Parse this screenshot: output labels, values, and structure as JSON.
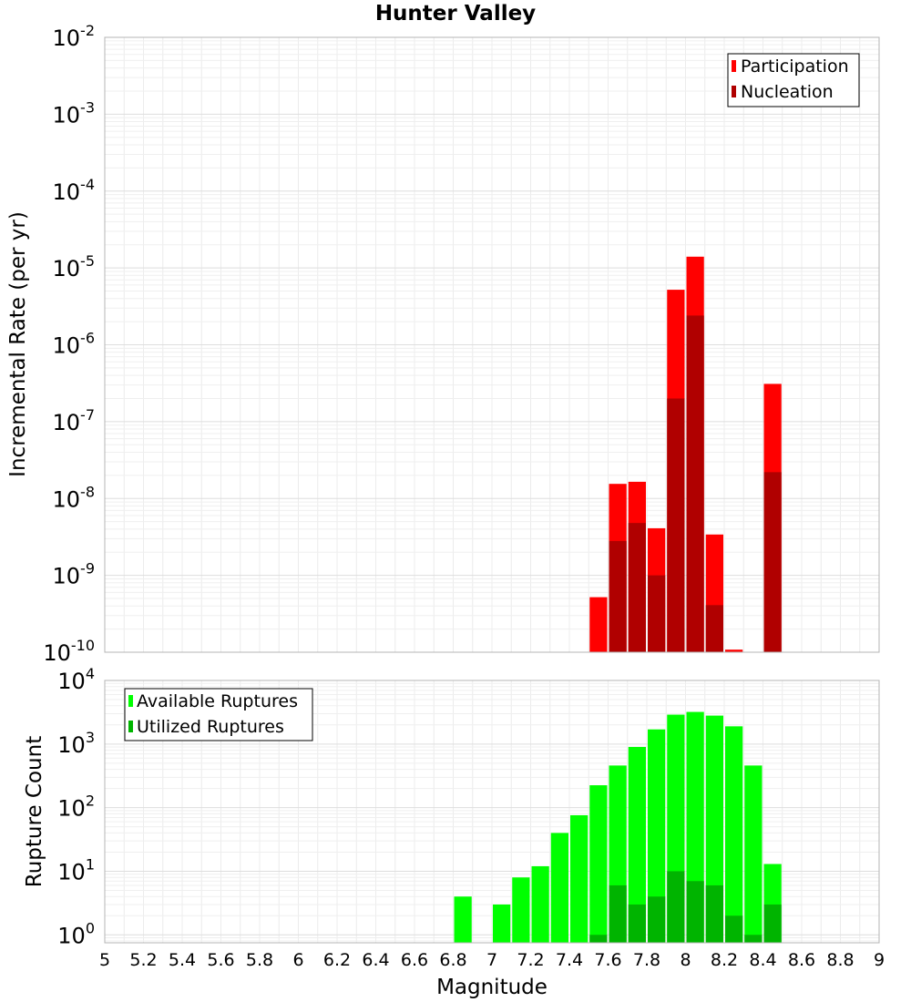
{
  "chart_data": [
    {
      "type": "bar",
      "title": "Hunter Valley",
      "xlabel": "",
      "ylabel": "Incremental Rate (per yr)",
      "xlim": [
        5,
        9
      ],
      "ylim": [
        1e-10,
        0.01
      ],
      "yscale": "log",
      "grid": true,
      "legend_position": "top-right",
      "bin_width": 0.1,
      "y_ticks": [
        {
          "base": "10",
          "exp": "-2"
        },
        {
          "base": "10",
          "exp": "-3"
        },
        {
          "base": "10",
          "exp": "-4"
        },
        {
          "base": "10",
          "exp": "-5"
        },
        {
          "base": "10",
          "exp": "-6"
        },
        {
          "base": "10",
          "exp": "-7"
        },
        {
          "base": "10",
          "exp": "-8"
        },
        {
          "base": "10",
          "exp": "-9"
        },
        {
          "base": "10",
          "exp": "-10"
        }
      ],
      "series": [
        {
          "name": "Participation",
          "color": "#ff0000",
          "x": [
            7.55,
            7.65,
            7.75,
            7.85,
            7.95,
            8.05,
            8.15,
            8.25,
            8.45
          ],
          "values": [
            5.2e-10,
            1.55e-08,
            1.65e-08,
            4.1e-09,
            5.2e-06,
            1.4e-05,
            3.4e-09,
            1.08e-10,
            3.1e-07
          ]
        },
        {
          "name": "Nucleation",
          "color": "#b00000",
          "x": [
            7.65,
            7.75,
            7.85,
            7.95,
            8.05,
            8.15,
            8.45
          ],
          "values": [
            2.8e-09,
            4.8e-09,
            1e-09,
            2e-07,
            2.4e-06,
            4.1e-10,
            2.2e-08
          ]
        }
      ]
    },
    {
      "type": "bar",
      "title": "",
      "xlabel": "Magnitude",
      "ylabel": "Rupture Count",
      "xlim": [
        5,
        9
      ],
      "ylim": [
        0.75,
        10000
      ],
      "yscale": "log",
      "grid": true,
      "legend_position": "top-left",
      "bin_width": 0.1,
      "x_ticks": [
        "5",
        "5.2",
        "5.4",
        "5.6",
        "5.8",
        "6",
        "6.2",
        "6.4",
        "6.6",
        "6.8",
        "7",
        "7.2",
        "7.4",
        "7.6",
        "7.8",
        "8",
        "8.2",
        "8.4",
        "8.6",
        "8.8",
        "9"
      ],
      "y_ticks": [
        {
          "base": "10",
          "exp": "4"
        },
        {
          "base": "10",
          "exp": "3"
        },
        {
          "base": "10",
          "exp": "2"
        },
        {
          "base": "10",
          "exp": "1"
        },
        {
          "base": "10",
          "exp": "0"
        }
      ],
      "series": [
        {
          "name": "Available Ruptures",
          "color": "#00ff00",
          "x": [
            6.85,
            7.05,
            7.15,
            7.25,
            7.35,
            7.45,
            7.55,
            7.65,
            7.75,
            7.85,
            7.95,
            8.05,
            8.15,
            8.25,
            8.35,
            8.45
          ],
          "values": [
            4,
            3,
            8,
            12,
            40,
            76,
            225,
            460,
            900,
            1700,
            2900,
            3200,
            2800,
            1900,
            460,
            13
          ]
        },
        {
          "name": "Utilized Ruptures",
          "color": "#00b400",
          "x": [
            7.55,
            7.65,
            7.75,
            7.85,
            7.95,
            8.05,
            8.15,
            8.25,
            8.35,
            8.45
          ],
          "values": [
            1,
            6,
            3,
            4,
            10,
            7,
            6,
            2,
            1,
            3
          ]
        }
      ]
    }
  ]
}
